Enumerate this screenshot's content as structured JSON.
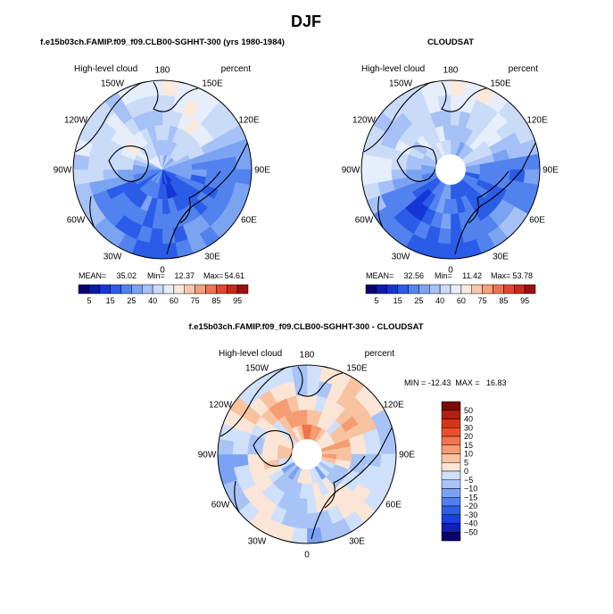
{
  "page": {
    "season": "DJF"
  },
  "palettes": {
    "abs": [
      "#08016e",
      "#0a1ca8",
      "#1536d6",
      "#2a5ce8",
      "#5282ee",
      "#7aa3f2",
      "#a6c1f6",
      "#cadbf8",
      "#e6eefc",
      "#fde9dc",
      "#f9c7a9",
      "#f3a07b",
      "#ec7351",
      "#e0472e",
      "#c9271d",
      "#9c1110"
    ],
    "diff": [
      "#08016e",
      "#0f22b4",
      "#1a3ee0",
      "#2c60ea",
      "#4e80ef",
      "#7aa1f3",
      "#a8c3f6",
      "#cfe0fa",
      "#fbe5d6",
      "#f8c2a0",
      "#f59c72",
      "#f1744a",
      "#eb4f2a",
      "#d6351a",
      "#b11f10",
      "#7d0a05"
    ]
  },
  "chart_data": [
    {
      "type": "polar-contour",
      "title": "f.e15b03ch.FAMIP.f09_f09.CLB00-SGHHT-300 (yrs 1980-1984)",
      "left_label": "High-level cloud",
      "right_label": "percent",
      "lon_labels": [
        "180",
        "150E",
        "120E",
        "90E",
        "60E",
        "30E",
        "0",
        "30W",
        "60W",
        "90W",
        "120W",
        "150W"
      ],
      "stats": {
        "mean_label": "MEAN=",
        "mean": "35.02",
        "min_label": "Min=",
        "min": "12.37",
        "max_label": "Max=",
        "max": "54.61"
      },
      "colorbar": {
        "ticks": [
          "5",
          "15",
          "25",
          "40",
          "60",
          "75",
          "85",
          "95"
        ]
      },
      "polar_hole": false
    },
    {
      "type": "polar-contour",
      "title": "CLOUDSAT",
      "left_label": "High-level cloud",
      "right_label": "percent",
      "lon_labels": [
        "180",
        "150E",
        "120E",
        "90E",
        "60E",
        "30E",
        "0",
        "30W",
        "60W",
        "90W",
        "120W",
        "150W"
      ],
      "stats": {
        "mean_label": "MEAN=",
        "mean": "32.56",
        "min_label": "Min=",
        "min": "11.42",
        "max_label": "Max=",
        "max": "53.78"
      },
      "colorbar": {
        "ticks": [
          "5",
          "15",
          "25",
          "40",
          "60",
          "75",
          "85",
          "95"
        ]
      },
      "polar_hole": true
    },
    {
      "type": "polar-contour",
      "title": "f.e15b03ch.FAMIP.f09_f09.CLB00-SGHHT-300 - CLOUDSAT",
      "left_label": "High-level cloud",
      "right_label": "percent",
      "lon_labels": [
        "180",
        "150E",
        "120E",
        "90E",
        "60E",
        "30E",
        "0",
        "30W",
        "60W",
        "90W",
        "120W",
        "150W"
      ],
      "stats_line": "MIN = -12.43  MAX =   16.83",
      "colorbar": {
        "ticks": [
          "50",
          "40",
          "30",
          "20",
          "15",
          "10",
          "5",
          "0",
          "−5",
          "−10",
          "−15",
          "−20",
          "−30",
          "−40",
          "−50"
        ]
      },
      "polar_hole": true
    }
  ]
}
